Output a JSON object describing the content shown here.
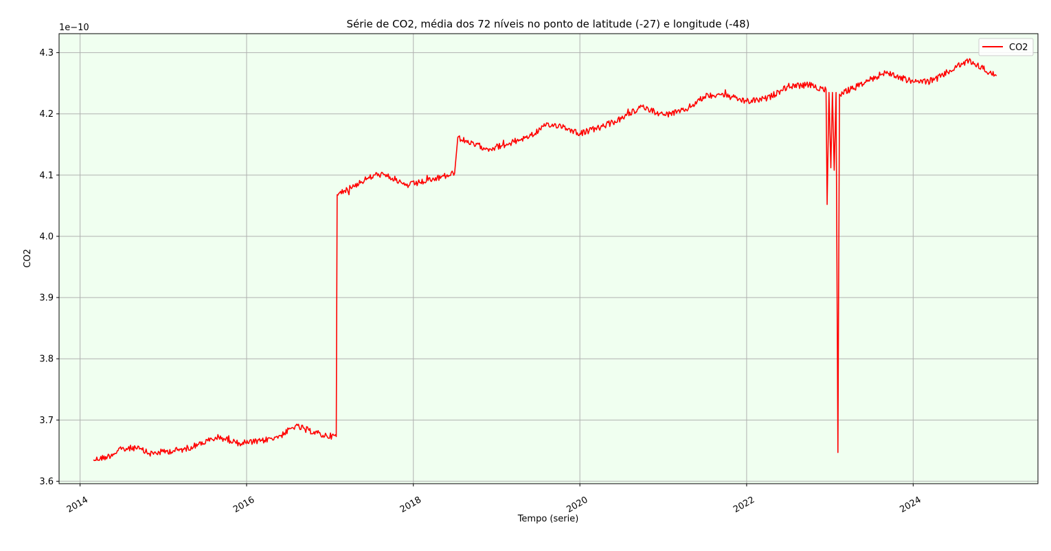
{
  "chart_data": {
    "type": "line",
    "title": "Série de CO2, média dos 72 níveis no ponto de latitude (-27) e longitude (-48)",
    "xlabel": "Tempo (serie)",
    "ylabel": "CO2",
    "y_scale_label": "1e−10",
    "y_ticks": [
      "3.6",
      "3.7",
      "3.8",
      "3.9",
      "4.0",
      "4.1",
      "4.2",
      "4.3"
    ],
    "x_ticks": [
      "2014",
      "2016",
      "2018",
      "2020",
      "2022",
      "2024"
    ],
    "xlim": [
      "2013-10-01",
      "2025-07-01"
    ],
    "ylim": [
      3.596,
      4.331
    ],
    "grid": true,
    "legend_position": "top-right",
    "plot_background": "#f0fff0",
    "series": [
      {
        "name": "CO2",
        "color": "#ff0000",
        "points": [
          [
            "2014-03-01",
            3.635
          ],
          [
            "2014-05-01",
            3.64
          ],
          [
            "2014-07-01",
            3.652
          ],
          [
            "2014-09-01",
            3.655
          ],
          [
            "2014-11-01",
            3.645
          ],
          [
            "2015-01-01",
            3.648
          ],
          [
            "2015-04-01",
            3.652
          ],
          [
            "2015-06-01",
            3.66
          ],
          [
            "2015-09-01",
            3.672
          ],
          [
            "2015-12-01",
            3.662
          ],
          [
            "2016-03-01",
            3.665
          ],
          [
            "2016-06-01",
            3.675
          ],
          [
            "2016-08-01",
            3.69
          ],
          [
            "2016-10-01",
            3.683
          ],
          [
            "2016-12-01",
            3.675
          ],
          [
            "2017-01-28",
            3.673
          ],
          [
            "2017-02-01",
            4.068
          ],
          [
            "2017-04-01",
            4.08
          ],
          [
            "2017-06-01",
            4.092
          ],
          [
            "2017-08-01",
            4.102
          ],
          [
            "2017-10-01",
            4.095
          ],
          [
            "2017-12-01",
            4.083
          ],
          [
            "2018-02-01",
            4.088
          ],
          [
            "2018-04-01",
            4.093
          ],
          [
            "2018-07-01",
            4.103
          ],
          [
            "2018-07-15",
            4.162
          ],
          [
            "2018-09-01",
            4.152
          ],
          [
            "2018-12-01",
            4.143
          ],
          [
            "2019-03-01",
            4.152
          ],
          [
            "2019-06-01",
            4.165
          ],
          [
            "2019-08-01",
            4.18
          ],
          [
            "2019-10-01",
            4.182
          ],
          [
            "2020-01-01",
            4.168
          ],
          [
            "2020-04-01",
            4.178
          ],
          [
            "2020-07-01",
            4.192
          ],
          [
            "2020-10-01",
            4.212
          ],
          [
            "2021-01-01",
            4.198
          ],
          [
            "2021-04-01",
            4.205
          ],
          [
            "2021-07-01",
            4.228
          ],
          [
            "2021-09-01",
            4.233
          ],
          [
            "2022-01-01",
            4.22
          ],
          [
            "2022-04-01",
            4.225
          ],
          [
            "2022-07-01",
            4.245
          ],
          [
            "2022-10-01",
            4.247
          ],
          [
            "2022-12-15",
            4.24
          ],
          [
            "2022-12-20",
            4.052
          ],
          [
            "2022-12-28",
            4.235
          ],
          [
            "2023-01-05",
            4.112
          ],
          [
            "2023-01-12",
            4.235
          ],
          [
            "2023-01-20",
            4.108
          ],
          [
            "2023-01-28",
            4.235
          ],
          [
            "2023-02-05",
            3.647
          ],
          [
            "2023-02-12",
            4.232
          ],
          [
            "2023-05-01",
            4.245
          ],
          [
            "2023-09-01",
            4.268
          ],
          [
            "2024-01-01",
            4.252
          ],
          [
            "2024-04-01",
            4.255
          ],
          [
            "2024-07-01",
            4.275
          ],
          [
            "2024-09-01",
            4.287
          ],
          [
            "2024-12-31",
            4.262
          ]
        ]
      }
    ]
  }
}
